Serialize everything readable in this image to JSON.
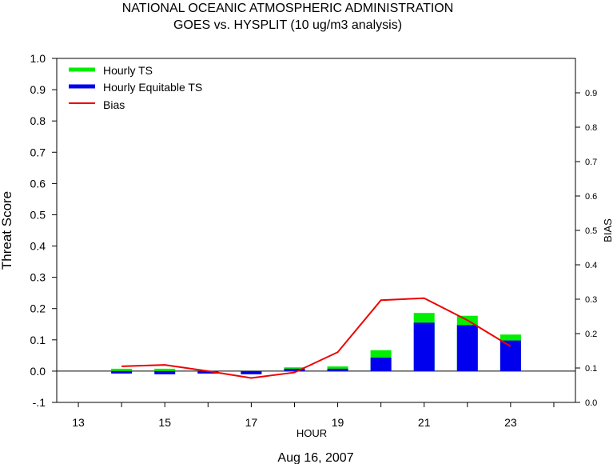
{
  "chart_data": {
    "type": "bar",
    "title": "NATIONAL OCEANIC ATMOSPHERIC ADMINISTRATION",
    "subtitle": "GOES vs. HYSPLIT  (10 ug/m3 analysis)",
    "xlabel": "HOUR",
    "ylabel": "Threat Score",
    "y2label": "BIAS",
    "date_label": "Aug 16, 2007",
    "xlim": [
      12.5,
      24.5
    ],
    "ylim": [
      -0.1,
      1.0
    ],
    "y2lim": [
      0.0,
      1.0
    ],
    "x_ticks": [
      13,
      15,
      17,
      19,
      21,
      23
    ],
    "y_ticks": [
      "-.1",
      "0.0",
      "0.1",
      "0.2",
      "0.3",
      "0.4",
      "0.5",
      "0.6",
      "0.7",
      "0.8",
      "0.9",
      "1.0"
    ],
    "y2_ticks": [
      "0.0",
      "0.1",
      "0.2",
      "0.3",
      "0.4",
      "0.5",
      "0.6",
      "0.7",
      "0.8",
      "0.9"
    ],
    "legend_position": "top-left",
    "x": [
      14,
      15,
      16,
      17,
      18,
      19,
      20,
      21,
      22,
      23
    ],
    "series": [
      {
        "name": "Hourly TS",
        "color": "#00ee00",
        "kind": "bar",
        "axis": "left",
        "values": [
          0.006,
          0.004,
          -0.003,
          -0.004,
          0.012,
          0.015,
          0.067,
          0.186,
          0.177,
          0.117
        ]
      },
      {
        "name": "Hourly Equitable TS",
        "color": "#0000ee",
        "kind": "bar",
        "axis": "left",
        "values": [
          -0.007,
          -0.01,
          -0.007,
          -0.01,
          0.001,
          0.002,
          0.043,
          0.155,
          0.147,
          0.098
        ]
      },
      {
        "name": "Bias",
        "color": "#ee0000",
        "kind": "line",
        "axis": "right",
        "values": [
          0.105,
          0.109,
          0.091,
          0.071,
          0.087,
          0.146,
          0.297,
          0.303,
          0.239,
          0.163
        ]
      }
    ]
  }
}
